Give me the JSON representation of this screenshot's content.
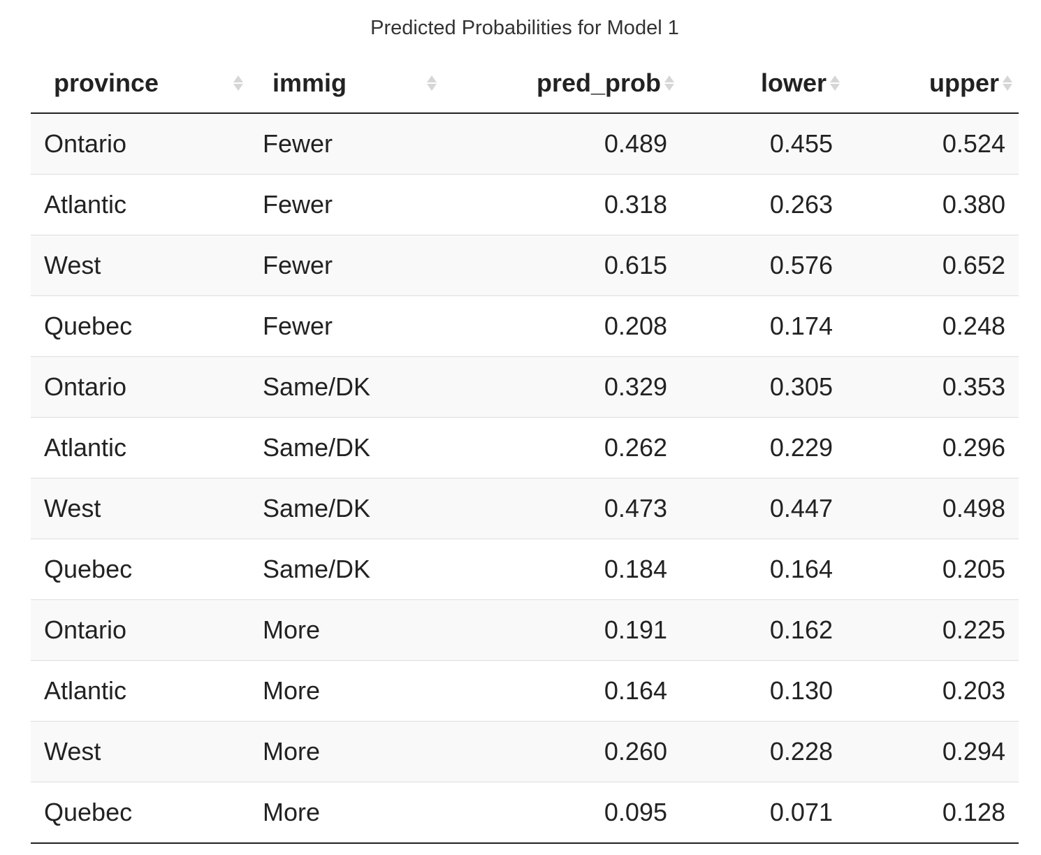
{
  "caption": "Predicted Probabilities for Model 1",
  "columns": [
    "province",
    "immig",
    "pred_prob",
    "lower",
    "upper"
  ],
  "rows": [
    [
      "Ontario",
      "Fewer",
      "0.489",
      "0.455",
      "0.524"
    ],
    [
      "Atlantic",
      "Fewer",
      "0.318",
      "0.263",
      "0.380"
    ],
    [
      "West",
      "Fewer",
      "0.615",
      "0.576",
      "0.652"
    ],
    [
      "Quebec",
      "Fewer",
      "0.208",
      "0.174",
      "0.248"
    ],
    [
      "Ontario",
      "Same/DK",
      "0.329",
      "0.305",
      "0.353"
    ],
    [
      "Atlantic",
      "Same/DK",
      "0.262",
      "0.229",
      "0.296"
    ],
    [
      "West",
      "Same/DK",
      "0.473",
      "0.447",
      "0.498"
    ],
    [
      "Quebec",
      "Same/DK",
      "0.184",
      "0.164",
      "0.205"
    ],
    [
      "Ontario",
      "More",
      "0.191",
      "0.162",
      "0.225"
    ],
    [
      "Atlantic",
      "More",
      "0.164",
      "0.130",
      "0.203"
    ],
    [
      "West",
      "More",
      "0.260",
      "0.228",
      "0.294"
    ],
    [
      "Quebec",
      "More",
      "0.095",
      "0.071",
      "0.128"
    ]
  ]
}
